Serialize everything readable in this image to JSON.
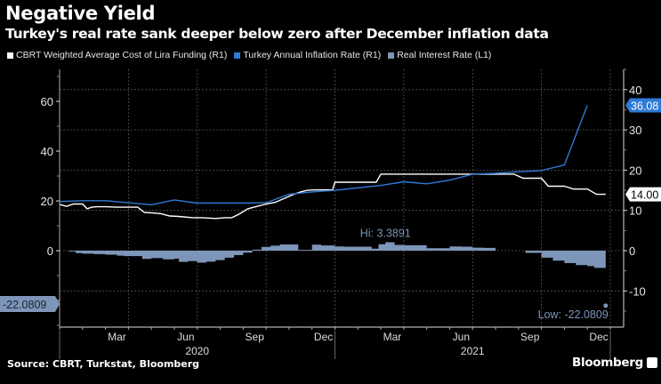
{
  "chart_data": {
    "type": "line",
    "title": "Negative Yield",
    "subtitle": "Turkey's real rate sank deeper below zero after December inflation data",
    "source": "Source: CBRT, Turkstat, Bloomberg",
    "brand": "Bloomberg",
    "legend_placement": "top-left",
    "legend": [
      {
        "name": "CBRT Weighted Average Cost of Lira Funding (R1)",
        "color": "#ffffff"
      },
      {
        "name": "Turkey Annual Inflation Rate (R1)",
        "color": "#2e7ad6"
      },
      {
        "name": "Real Interest Rate (L1)",
        "color": "#7d95b8"
      }
    ],
    "x_month_ticks": [
      "Mar",
      "Jun",
      "Sep",
      "Dec",
      "Mar",
      "Jun",
      "Sep",
      "Dec"
    ],
    "x_year_labels": [
      "2020",
      "2021"
    ],
    "x_range_months": [
      0,
      24
    ],
    "left_axis": {
      "ticks": [
        "60",
        "40",
        "20",
        "0",
        "-20"
      ],
      "values": [
        60,
        40,
        20,
        0,
        -20
      ],
      "range": [
        -30,
        75
      ]
    },
    "right_axis": {
      "ticks": [
        "40",
        "30",
        "20",
        "10",
        "0",
        "-10"
      ],
      "values": [
        40,
        30,
        20,
        10,
        0,
        -10
      ],
      "range": [
        -19,
        47
      ]
    },
    "grid": true,
    "series": [
      {
        "name": "CBRT Weighted Average Cost of Lira Funding (R1)",
        "axis": "right",
        "color": "#ffffff",
        "x": [
          0,
          0.3,
          0.6,
          1.0,
          1.2,
          1.4,
          1.6,
          2.0,
          2.5,
          3.0,
          3.4,
          3.7,
          4.0,
          4.4,
          4.8,
          5.2,
          5.8,
          6.2,
          6.8,
          7.2,
          7.5,
          7.8,
          8.2,
          8.6,
          9.0,
          9.4,
          9.8,
          10.2,
          10.5,
          10.8,
          11.2,
          11.5,
          11.9,
          12.0,
          12.5,
          13.0,
          13.8,
          14.0,
          14.6,
          15.0,
          16.0,
          17.0,
          18.0,
          19.0,
          19.8,
          20.2,
          20.5,
          21.0,
          21.3,
          22.0,
          22.4,
          23.0,
          23.4,
          23.8
        ],
        "values": [
          11.5,
          11.0,
          11.6,
          11.6,
          10.4,
          10.8,
          10.9,
          10.9,
          10.8,
          10.8,
          10.8,
          9.5,
          9.4,
          9.2,
          8.6,
          8.5,
          8.2,
          8.2,
          8.0,
          8.2,
          8.2,
          9.0,
          10.4,
          11.0,
          11.6,
          12.0,
          13.0,
          14.0,
          14.6,
          15.0,
          15.1,
          15.1,
          15.1,
          17.0,
          17.0,
          17.0,
          17.0,
          19.0,
          19.0,
          19.0,
          19.0,
          19.0,
          19.0,
          19.0,
          19.0,
          18.0,
          18.0,
          18.0,
          16.0,
          16.0,
          15.3,
          15.3,
          14.0,
          14.0
        ],
        "last_label": "14.00"
      },
      {
        "name": "Turkey Annual Inflation Rate (R1)",
        "axis": "right",
        "color": "#2e7ad6",
        "x": [
          0,
          1,
          2,
          3,
          4,
          5,
          6,
          7,
          8,
          9,
          10,
          11,
          12,
          13,
          14,
          15,
          16,
          17,
          18,
          19,
          20,
          21,
          22,
          23
        ],
        "values": [
          12.2,
          12.4,
          12.4,
          11.9,
          11.4,
          12.6,
          11.8,
          11.8,
          11.8,
          11.9,
          14.0,
          14.6,
          15.0,
          15.6,
          16.2,
          17.1,
          16.6,
          17.5,
          19.0,
          19.2,
          19.6,
          19.9,
          21.3,
          36.08
        ],
        "last_label": "36.08"
      },
      {
        "name": "Real Interest Rate (L1)",
        "axis": "left",
        "color": "#7d95b8",
        "x": [
          0,
          0.4,
          0.7,
          1.0,
          1.5,
          2.0,
          2.5,
          2.8,
          3.2,
          3.6,
          4.0,
          4.5,
          5.0,
          5.2,
          5.6,
          6.0,
          6.4,
          6.8,
          7.2,
          7.6,
          8.0,
          8.4,
          8.8,
          9.2,
          9.6,
          10.0,
          10.4,
          10.6,
          11.0,
          11.4,
          11.7,
          12.0,
          12.4,
          13.0,
          13.6,
          13.9,
          14.2,
          14.6,
          15.0,
          15.6,
          16.0,
          16.6,
          17.0,
          17.5,
          18.0,
          18.5,
          19.0,
          19.5,
          19.9,
          20.3,
          20.6,
          21.0,
          21.5,
          22.0,
          22.5,
          23.0,
          23.3,
          23.5,
          23.8
        ],
        "values": [
          0,
          -0.3,
          -1.0,
          -1.2,
          -1.4,
          -1.6,
          -2.0,
          -2.2,
          -2.2,
          -3.3,
          -3.0,
          -3.5,
          -3.2,
          -4.5,
          -4.2,
          -4.8,
          -4.4,
          -3.8,
          -2.8,
          -1.8,
          -0.8,
          0.4,
          1.5,
          2.0,
          2.5,
          2.5,
          0.3,
          0.3,
          2.4,
          2.1,
          2.1,
          1.7,
          1.6,
          1.6,
          0.8,
          2.6,
          3.39,
          2.3,
          2.2,
          2.2,
          1.0,
          1.0,
          1.7,
          1.6,
          1.2,
          1.1,
          0,
          0,
          0,
          -0.9,
          -0.9,
          -2.8,
          -4.0,
          -5.0,
          -5.8,
          -6.2,
          -6.9,
          -6.9,
          -22.08
        ],
        "last_label": "-22.0809",
        "hi_label": "Hi: 3.3891",
        "low_label": "Low: -22.0809"
      }
    ]
  }
}
